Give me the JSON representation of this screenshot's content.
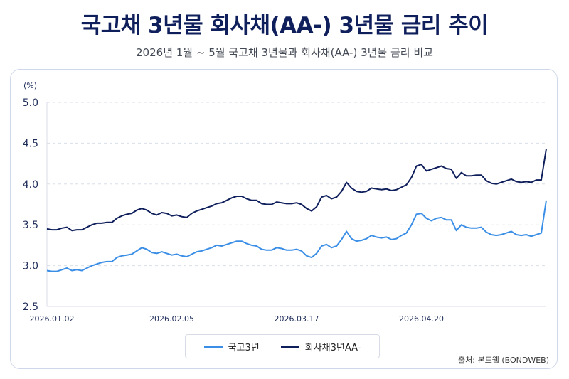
{
  "title": "국고채 3년물 회사채(AA-) 3년물 금리 추이",
  "subtitle": "2026년 1월 ~ 5월 국고채 3년물과 회사채(AA-) 3년물 금리 비교",
  "source": "출처: 본드웹 (BONDWEB)",
  "colors": {
    "series_1": "#3a8ee6",
    "series_2": "#0f1f5c",
    "grid": "#d9dee8",
    "axis_text": "#1f2d5a"
  },
  "chart_data": {
    "type": "line",
    "ylabel": "(%)",
    "ylim": [
      2.5,
      5.0
    ],
    "yticks": [
      "5.0",
      "4.5",
      "4.0",
      "3.5",
      "3.0",
      "2.5"
    ],
    "xtick_labels": [
      "2026.01.02",
      "2026.02.05",
      "2026.03.17",
      "2026.04.20"
    ],
    "xtick_positions": [
      0,
      25,
      50,
      75
    ],
    "x_count": 101,
    "grid": "horizontal-dashed",
    "legend_position": "bottom-center",
    "series": [
      {
        "name": "국고3년",
        "values": [
          2.94,
          2.93,
          2.93,
          2.95,
          2.97,
          2.94,
          2.95,
          2.94,
          2.97,
          3.0,
          3.02,
          3.04,
          3.05,
          3.05,
          3.1,
          3.12,
          3.13,
          3.14,
          3.18,
          3.22,
          3.2,
          3.16,
          3.15,
          3.17,
          3.15,
          3.13,
          3.14,
          3.12,
          3.11,
          3.14,
          3.17,
          3.18,
          3.2,
          3.22,
          3.25,
          3.24,
          3.26,
          3.28,
          3.3,
          3.3,
          3.27,
          3.25,
          3.24,
          3.2,
          3.19,
          3.19,
          3.22,
          3.21,
          3.19,
          3.19,
          3.2,
          3.18,
          3.12,
          3.1,
          3.15,
          3.24,
          3.26,
          3.22,
          3.24,
          3.32,
          3.42,
          3.33,
          3.3,
          3.31,
          3.33,
          3.37,
          3.35,
          3.34,
          3.35,
          3.32,
          3.33,
          3.37,
          3.4,
          3.5,
          3.63,
          3.64,
          3.58,
          3.55,
          3.58,
          3.59,
          3.56,
          3.56,
          3.43,
          3.5,
          3.47,
          3.46,
          3.46,
          3.47,
          3.41,
          3.38,
          3.37,
          3.38,
          3.4,
          3.42,
          3.38,
          3.37,
          3.38,
          3.36,
          3.38,
          3.4,
          3.8
        ],
        "color": "#3a8ee6"
      },
      {
        "name": "회사채3년AA-",
        "values": [
          3.45,
          3.44,
          3.44,
          3.46,
          3.47,
          3.43,
          3.44,
          3.44,
          3.47,
          3.5,
          3.52,
          3.52,
          3.53,
          3.53,
          3.58,
          3.61,
          3.63,
          3.64,
          3.68,
          3.7,
          3.68,
          3.64,
          3.62,
          3.65,
          3.64,
          3.61,
          3.62,
          3.6,
          3.59,
          3.64,
          3.67,
          3.69,
          3.71,
          3.73,
          3.76,
          3.77,
          3.8,
          3.83,
          3.85,
          3.85,
          3.82,
          3.8,
          3.8,
          3.76,
          3.75,
          3.75,
          3.78,
          3.77,
          3.76,
          3.76,
          3.77,
          3.75,
          3.7,
          3.67,
          3.72,
          3.84,
          3.86,
          3.82,
          3.84,
          3.91,
          4.02,
          3.95,
          3.91,
          3.9,
          3.91,
          3.95,
          3.94,
          3.93,
          3.94,
          3.92,
          3.93,
          3.96,
          3.99,
          4.08,
          4.22,
          4.24,
          4.16,
          4.18,
          4.2,
          4.22,
          4.19,
          4.18,
          4.07,
          4.14,
          4.1,
          4.1,
          4.11,
          4.11,
          4.04,
          4.01,
          4.0,
          4.02,
          4.04,
          4.06,
          4.03,
          4.02,
          4.03,
          4.02,
          4.05,
          4.05,
          4.43
        ],
        "color": "#0f1f5c"
      }
    ]
  }
}
